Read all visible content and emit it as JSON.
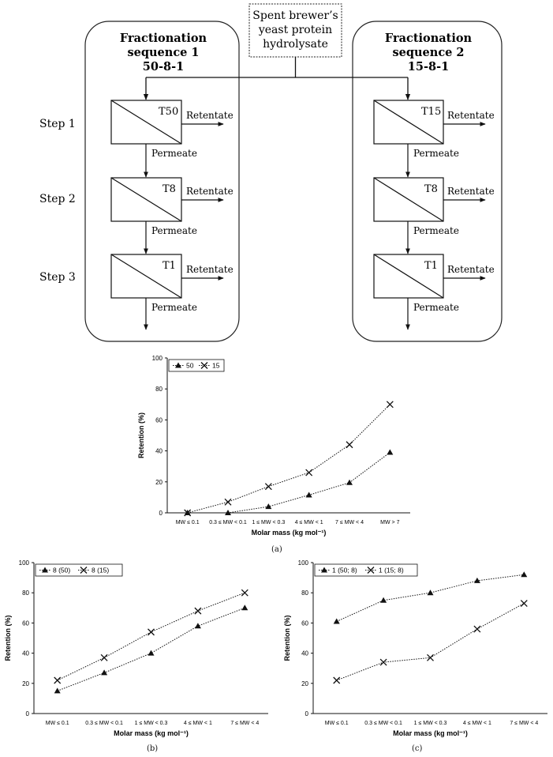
{
  "feed_label": "Spent brewer's yeast protein hydrolysate",
  "sequences": [
    {
      "title": "Fractionation sequence 1",
      "code": "50-8-1",
      "stages": [
        "T50",
        "T8",
        "T1"
      ]
    },
    {
      "title": "Fractionation sequence 2",
      "code": "15-8-1",
      "stages": [
        "T15",
        "T8",
        "T1"
      ]
    }
  ],
  "step_labels": [
    "Step 1",
    "Step 2",
    "Step 3"
  ],
  "retentate_label": "Retentate",
  "permeate_label": "Permeate",
  "chart_data": [
    {
      "type": "line",
      "caption": "(a)",
      "categories": [
        "MW ≤ 0.1",
        "0.3 ≤ MW < 0.1",
        "1 ≤ MW < 0.3",
        "4 ≤ MW < 1",
        "7 ≤ MW < 4",
        "MW > 7"
      ],
      "series": [
        {
          "name": "50",
          "marker": "triangle",
          "values": [
            0,
            0,
            4,
            11.5,
            19.5,
            39
          ]
        },
        {
          "name": "15",
          "marker": "x",
          "values": [
            0,
            7,
            17,
            26,
            44,
            70
          ]
        }
      ],
      "xlabel": "Molar mass (kg mol⁻¹)",
      "ylabel": "Retention (%)",
      "ylim": [
        0,
        100
      ],
      "yticks": [
        0,
        20,
        40,
        60,
        80,
        100
      ],
      "legend": "top-left"
    },
    {
      "type": "line",
      "caption": "(b)",
      "categories": [
        "MW ≤ 0.1",
        "0.3 ≤ MW < 0.1",
        "1 ≤ MW < 0.3",
        "4 ≤ MW < 1",
        "7 ≤ MW < 4"
      ],
      "series": [
        {
          "name": "8 (50)",
          "marker": "triangle",
          "values": [
            15,
            27,
            40,
            58,
            70
          ]
        },
        {
          "name": "8 (15)",
          "marker": "x",
          "values": [
            22,
            37,
            54,
            68,
            80
          ]
        }
      ],
      "xlabel": "Molar mass (kg mol⁻¹)",
      "ylabel": "Retention (%)",
      "ylim": [
        0,
        100
      ],
      "yticks": [
        0,
        20,
        40,
        60,
        80,
        100
      ],
      "legend": "top-left"
    },
    {
      "type": "line",
      "caption": "(c)",
      "categories": [
        "MW ≤ 0.1",
        "0.3 ≤ MW < 0.1",
        "1 ≤ MW < 0.3",
        "4 ≤ MW < 1",
        "7 ≤ MW < 4"
      ],
      "series": [
        {
          "name": "1 (50; 8)",
          "marker": "triangle",
          "values": [
            61,
            75,
            80,
            88,
            92
          ]
        },
        {
          "name": "1 (15; 8)",
          "marker": "x",
          "values": [
            22,
            34,
            37,
            56,
            73
          ]
        }
      ],
      "xlabel": "Molar mass (kg mol⁻¹)",
      "ylabel": "Retention (%)",
      "ylim": [
        0,
        100
      ],
      "yticks": [
        0,
        20,
        40,
        60,
        80,
        100
      ],
      "legend": "top-left"
    }
  ]
}
